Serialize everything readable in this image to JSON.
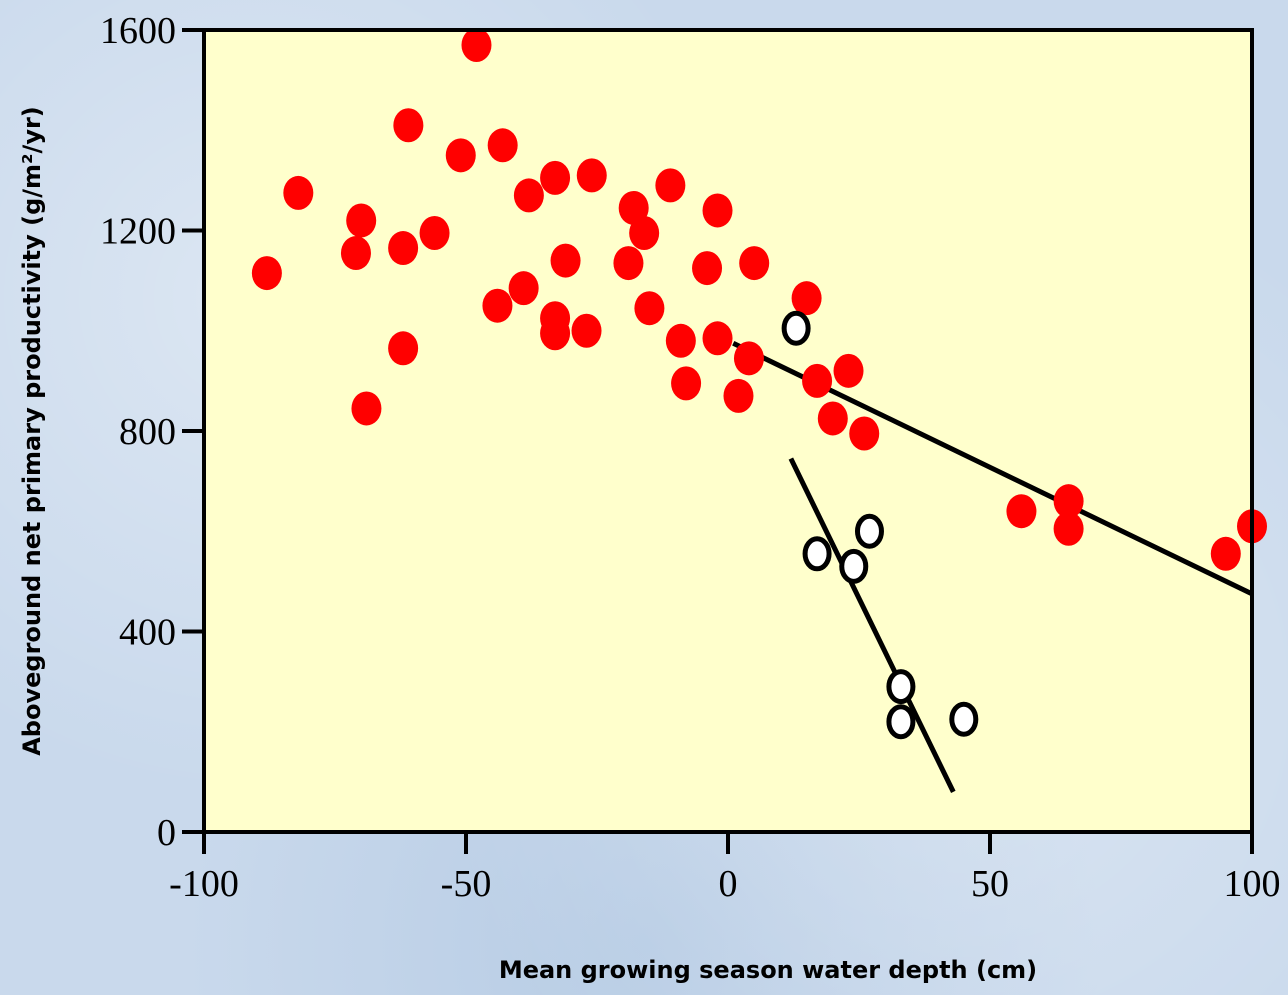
{
  "chart_data": {
    "type": "scatter",
    "title": "",
    "xlabel": "Mean growing season water depth (cm)",
    "ylabel": "Aboveground net primary productivity (g/m²/yr)",
    "xlim": [
      -100,
      100
    ],
    "ylim": [
      0,
      1600
    ],
    "xticks": [
      -100,
      -50,
      0,
      50,
      100
    ],
    "yticks": [
      0,
      400,
      800,
      1200,
      1600
    ],
    "xtick_labels": [
      "-100",
      "-50",
      "0",
      "50",
      "100"
    ],
    "ytick_labels": [
      "0",
      "400",
      "800",
      "1200",
      "1600"
    ],
    "grid": false,
    "legend": "none",
    "colors": {
      "plot_background": "#ffffcc",
      "filled": "#ff0000",
      "open": "#ffffff",
      "line": "#000000"
    },
    "series": [
      {
        "marker": "filled",
        "points": [
          [
            -88,
            1115
          ],
          [
            -82,
            1275
          ],
          [
            -71,
            1155
          ],
          [
            -70,
            1220
          ],
          [
            -69,
            845
          ],
          [
            -62,
            1165
          ],
          [
            -62,
            965
          ],
          [
            -61,
            1410
          ],
          [
            -56,
            1195
          ],
          [
            -51,
            1350
          ],
          [
            -48,
            1570
          ],
          [
            -44,
            1050
          ],
          [
            -43,
            1370
          ],
          [
            -39,
            1085
          ],
          [
            -38,
            1270
          ],
          [
            -33,
            1305
          ],
          [
            -33,
            1025
          ],
          [
            -33,
            995
          ],
          [
            -31,
            1140
          ],
          [
            -27,
            1000
          ],
          [
            -26,
            1310
          ],
          [
            -19,
            1135
          ],
          [
            -18,
            1245
          ],
          [
            -16,
            1195
          ],
          [
            -15,
            1045
          ],
          [
            -11,
            1290
          ],
          [
            -9,
            980
          ],
          [
            -8,
            895
          ],
          [
            -4,
            1125
          ],
          [
            -2,
            985
          ],
          [
            -2,
            1240
          ],
          [
            2,
            870
          ],
          [
            4,
            945
          ],
          [
            5,
            1135
          ],
          [
            15,
            1065
          ],
          [
            17,
            900
          ],
          [
            20,
            825
          ],
          [
            23,
            920
          ],
          [
            26,
            795
          ],
          [
            56,
            640
          ],
          [
            65,
            660
          ],
          [
            65,
            605
          ],
          [
            95,
            555
          ],
          [
            100,
            610
          ]
        ]
      },
      {
        "marker": "open",
        "points": [
          [
            13,
            1005
          ],
          [
            17,
            555
          ],
          [
            24,
            530
          ],
          [
            27,
            600
          ],
          [
            33,
            290
          ],
          [
            33,
            220
          ],
          [
            45,
            225
          ]
        ]
      }
    ],
    "lines": [
      {
        "x": [
          1,
          100
        ],
        "y": [
          975,
          475
        ]
      },
      {
        "x": [
          12,
          43
        ],
        "y": [
          745,
          80
        ]
      }
    ]
  }
}
